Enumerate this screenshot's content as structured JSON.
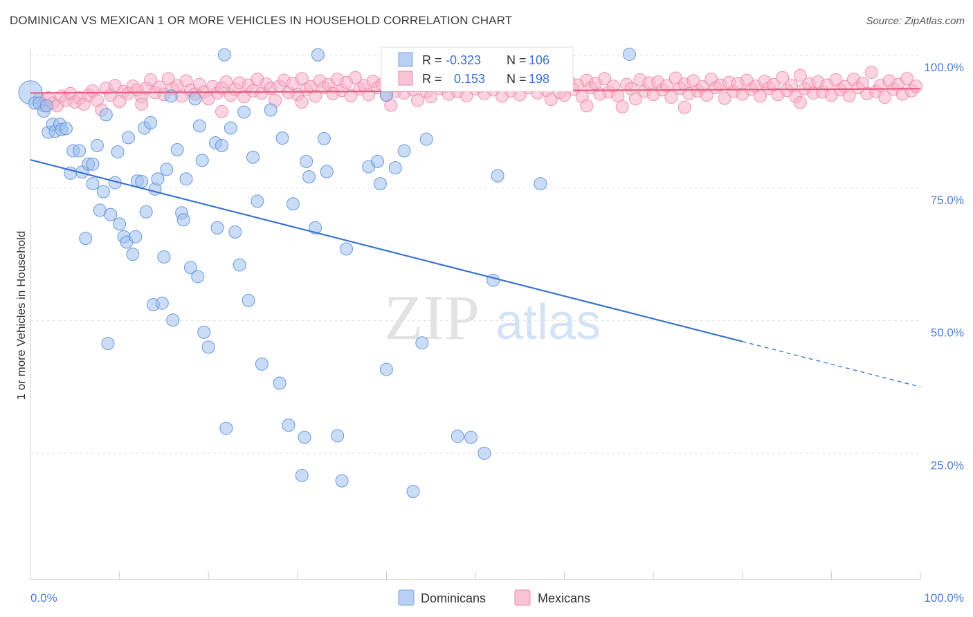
{
  "title": "DOMINICAN VS MEXICAN 1 OR MORE VEHICLES IN HOUSEHOLD CORRELATION CHART",
  "source": "Source: ZipAtlas.com",
  "watermark": {
    "zip": "ZIP",
    "atlas": "atlas"
  },
  "legend": {
    "rows": [
      {
        "r_label": "R =",
        "r_value": "-0.323",
        "n_label": "N =",
        "n_value": "106",
        "color": "#9fc0ee"
      },
      {
        "r_label": "R =",
        "r_value": "0.153",
        "n_label": "N =",
        "n_value": "198",
        "color": "#f6b3c8"
      }
    ]
  },
  "bottom_legend": [
    {
      "label": "Dominicans",
      "color": "#b7d0f4"
    },
    {
      "label": "Mexicans",
      "color": "#f8c3d4"
    }
  ],
  "chart_data": {
    "type": "scatter",
    "title": "DOMINICAN VS MEXICAN 1 OR MORE VEHICLES IN HOUSEHOLD CORRELATION CHART",
    "xlabel": "",
    "ylabel": "1 or more Vehicles in Household",
    "xlim": [
      0,
      100
    ],
    "ylim": [
      0,
      100
    ],
    "x_tick_labels": [
      "0.0%",
      "100.0%"
    ],
    "y_tick_labels": [
      "25.0%",
      "50.0%",
      "75.0%",
      "100.0%"
    ],
    "y_ticks": [
      25,
      50,
      75,
      100
    ],
    "grid": true,
    "legend_position": "top-center",
    "series": [
      {
        "name": "Dominicans",
        "color": "#9fc0ee",
        "stroke": "#5b8fd8",
        "trend": {
          "x0": 0,
          "y0": 80.3,
          "x1": 100,
          "y1": 37.5,
          "solid_until": 80
        },
        "points": [
          [
            0,
            93
          ],
          [
            0.5,
            91
          ],
          [
            1,
            91
          ],
          [
            1.5,
            89.5
          ],
          [
            1.8,
            90.5
          ],
          [
            2,
            85.5
          ],
          [
            2.5,
            87
          ],
          [
            2.8,
            85.7
          ],
          [
            3.3,
            87
          ],
          [
            3.5,
            86
          ],
          [
            4,
            86.2
          ],
          [
            4.5,
            77.8
          ],
          [
            4.8,
            82
          ],
          [
            5.5,
            82
          ],
          [
            5.8,
            78
          ],
          [
            6.2,
            65.5
          ],
          [
            6.5,
            79.5
          ],
          [
            7,
            79.5
          ],
          [
            7,
            75.8
          ],
          [
            7.5,
            83
          ],
          [
            7.8,
            70.8
          ],
          [
            8.2,
            74.3
          ],
          [
            8.5,
            88.8
          ],
          [
            8.7,
            45.7
          ],
          [
            9,
            70
          ],
          [
            9.5,
            76
          ],
          [
            9.8,
            81.8
          ],
          [
            10,
            68.2
          ],
          [
            10.5,
            65.8
          ],
          [
            10.8,
            64.8
          ],
          [
            11,
            84.5
          ],
          [
            11.5,
            62.5
          ],
          [
            11.8,
            65.8
          ],
          [
            12,
            76.3
          ],
          [
            12.5,
            76.2
          ],
          [
            12.8,
            86.3
          ],
          [
            13,
            70.5
          ],
          [
            13.5,
            87.3
          ],
          [
            13.8,
            53
          ],
          [
            14,
            74.8
          ],
          [
            14.3,
            76.7
          ],
          [
            14.8,
            53.3
          ],
          [
            15,
            62
          ],
          [
            15.3,
            78.5
          ],
          [
            15.8,
            92.3
          ],
          [
            16,
            50.1
          ],
          [
            16.5,
            82.2
          ],
          [
            17,
            70.3
          ],
          [
            17.2,
            69
          ],
          [
            17.5,
            76.7
          ],
          [
            18,
            60
          ],
          [
            18.5,
            91.8
          ],
          [
            18.8,
            58.3
          ],
          [
            19,
            86.7
          ],
          [
            19.3,
            80.2
          ],
          [
            19.5,
            47.8
          ],
          [
            20,
            45
          ],
          [
            20.8,
            83.5
          ],
          [
            21,
            67.5
          ],
          [
            21.5,
            83
          ],
          [
            21.8,
            100.1
          ],
          [
            22,
            29.7
          ],
          [
            22.5,
            86.3
          ],
          [
            23,
            66.7
          ],
          [
            23.5,
            60.5
          ],
          [
            24,
            89.3
          ],
          [
            24.5,
            53.8
          ],
          [
            25,
            80.8
          ],
          [
            25.5,
            72.5
          ],
          [
            26,
            41.8
          ],
          [
            27,
            89.7
          ],
          [
            28,
            38.2
          ],
          [
            28.3,
            84.4
          ],
          [
            29,
            30.3
          ],
          [
            29.5,
            72
          ],
          [
            30.5,
            20.8
          ],
          [
            30.8,
            28
          ],
          [
            31,
            80
          ],
          [
            31.3,
            77.1
          ],
          [
            32,
            67.5
          ],
          [
            32.3,
            100.1
          ],
          [
            33,
            84.3
          ],
          [
            33.3,
            78.1
          ],
          [
            34.5,
            28.3
          ],
          [
            35,
            19.8
          ],
          [
            35.5,
            63.5
          ],
          [
            38,
            79
          ],
          [
            39,
            80
          ],
          [
            39.3,
            75.8
          ],
          [
            40,
            40.8
          ],
          [
            40,
            92.5
          ],
          [
            41,
            78.8
          ],
          [
            42,
            82
          ],
          [
            43,
            17.8
          ],
          [
            44,
            45.8
          ],
          [
            44.5,
            84.2
          ],
          [
            48,
            28.2
          ],
          [
            49.5,
            28
          ],
          [
            51,
            25
          ],
          [
            52,
            57.6
          ],
          [
            52.5,
            77.3
          ],
          [
            57.3,
            75.8
          ],
          [
            67.3,
            100.2
          ]
        ]
      },
      {
        "name": "Mexicans",
        "color": "#f6b3c8",
        "stroke": "#ee86a8",
        "trend": {
          "x0": 0,
          "y0": 92.9,
          "x1": 100,
          "y1": 93.7,
          "solid_until": 100
        },
        "points": [
          [
            1,
            91.8
          ],
          [
            1.5,
            90.5
          ],
          [
            2,
            92
          ],
          [
            2.5,
            91
          ],
          [
            3,
            90.5
          ],
          [
            3.5,
            92.3
          ],
          [
            4,
            91.5
          ],
          [
            4.5,
            92.8
          ],
          [
            5,
            91.2
          ],
          [
            5.5,
            92
          ],
          [
            6,
            90.8
          ],
          [
            6.5,
            92.5
          ],
          [
            7,
            93.3
          ],
          [
            7.5,
            91.5
          ],
          [
            8,
            89.7
          ],
          [
            8.5,
            93.8
          ],
          [
            9,
            92.5
          ],
          [
            9.5,
            94.3
          ],
          [
            10,
            91.3
          ],
          [
            10.5,
            93.2
          ],
          [
            11,
            92.8
          ],
          [
            11.5,
            94.2
          ],
          [
            12,
            93.5
          ],
          [
            12.5,
            92.2
          ],
          [
            13,
            93.8
          ],
          [
            13.5,
            95.4
          ],
          [
            14,
            93
          ],
          [
            14.5,
            94
          ],
          [
            15,
            92.6
          ],
          [
            15.5,
            95.6
          ],
          [
            16,
            93.7
          ],
          [
            16.5,
            94.3
          ],
          [
            17,
            92.3
          ],
          [
            17.5,
            95.2
          ],
          [
            18,
            93.4
          ],
          [
            18.5,
            92.7
          ],
          [
            19,
            94.5
          ],
          [
            19.5,
            93.1
          ],
          [
            20,
            91.8
          ],
          [
            20.5,
            94.1
          ],
          [
            21,
            92.9
          ],
          [
            21.5,
            93.8
          ],
          [
            22,
            95
          ],
          [
            22.5,
            92.5
          ],
          [
            23,
            93.6
          ],
          [
            23.5,
            94.8
          ],
          [
            24,
            92.2
          ],
          [
            24.5,
            94.4
          ],
          [
            25,
            93.3
          ],
          [
            25.5,
            95.5
          ],
          [
            26,
            92.9
          ],
          [
            26.5,
            94.6
          ],
          [
            27,
            93.8
          ],
          [
            27.5,
            91.5
          ],
          [
            28,
            94.2
          ],
          [
            28.5,
            95.3
          ],
          [
            29,
            93
          ],
          [
            29.5,
            94.7
          ],
          [
            30,
            92.6
          ],
          [
            30.5,
            95.6
          ],
          [
            31,
            93.6
          ],
          [
            31.5,
            94.1
          ],
          [
            32,
            92.3
          ],
          [
            32.5,
            95.2
          ],
          [
            33,
            93.9
          ],
          [
            33.5,
            94.5
          ],
          [
            34,
            92.8
          ],
          [
            34.5,
            95.5
          ],
          [
            35,
            93.4
          ],
          [
            35.5,
            94.9
          ],
          [
            36,
            92.4
          ],
          [
            36.5,
            95.8
          ],
          [
            37,
            93.7
          ],
          [
            37.5,
            94.3
          ],
          [
            38,
            92.6
          ],
          [
            38.5,
            95.1
          ],
          [
            39,
            93.9
          ],
          [
            39.5,
            94.6
          ],
          [
            40,
            92.5
          ],
          [
            40.5,
            94.8
          ],
          [
            41,
            93.2
          ],
          [
            41.5,
            95.4
          ],
          [
            42,
            92.9
          ],
          [
            42.5,
            94.4
          ],
          [
            43,
            93.5
          ],
          [
            43.5,
            91.5
          ],
          [
            44,
            94.9
          ],
          [
            44.5,
            93.1
          ],
          [
            45,
            92.2
          ],
          [
            45.5,
            95.3
          ],
          [
            46,
            93.8
          ],
          [
            46.5,
            94.1
          ],
          [
            47,
            92.7
          ],
          [
            47.5,
            95.5
          ],
          [
            48,
            93.2
          ],
          [
            48.5,
            94.6
          ],
          [
            49,
            92.4
          ],
          [
            49.5,
            95
          ],
          [
            50,
            93.7
          ],
          [
            50.5,
            94.2
          ],
          [
            51,
            92.8
          ],
          [
            51.5,
            95.7
          ],
          [
            52,
            93.5
          ],
          [
            52.5,
            94.5
          ],
          [
            53,
            92.3
          ],
          [
            53.5,
            94.9
          ],
          [
            54,
            93.3
          ],
          [
            54.5,
            95.2
          ],
          [
            55,
            92.6
          ],
          [
            55.5,
            94.3
          ],
          [
            56,
            93.9
          ],
          [
            56.5,
            95.8
          ],
          [
            57,
            92.9
          ],
          [
            57.5,
            94.6
          ],
          [
            58,
            93.4
          ],
          [
            58.5,
            91.7
          ],
          [
            59,
            94.8
          ],
          [
            59.5,
            93
          ],
          [
            60,
            92.5
          ],
          [
            60.5,
            95.1
          ],
          [
            61,
            93.6
          ],
          [
            61.5,
            94.4
          ],
          [
            62,
            92.2
          ],
          [
            62.5,
            95.3
          ],
          [
            63,
            93.9
          ],
          [
            63.5,
            94.7
          ],
          [
            64,
            92.7
          ],
          [
            64.5,
            95.6
          ],
          [
            65,
            93.1
          ],
          [
            65.5,
            94.2
          ],
          [
            66,
            92.4
          ],
          [
            66.5,
            90.3
          ],
          [
            67,
            94.5
          ],
          [
            67.5,
            93.7
          ],
          [
            68,
            91.8
          ],
          [
            68.5,
            95.4
          ],
          [
            69,
            93.2
          ],
          [
            69.5,
            94.8
          ],
          [
            70,
            92.6
          ],
          [
            70.5,
            95
          ],
          [
            71,
            93.5
          ],
          [
            71.5,
            94.3
          ],
          [
            72,
            92.1
          ],
          [
            72.5,
            95.7
          ],
          [
            73,
            93.8
          ],
          [
            73.5,
            94.6
          ],
          [
            74,
            92.8
          ],
          [
            74.5,
            95.2
          ],
          [
            75,
            93.3
          ],
          [
            75.5,
            94.1
          ],
          [
            76,
            92.5
          ],
          [
            76.5,
            95.5
          ],
          [
            77,
            93.9
          ],
          [
            77.5,
            94.4
          ],
          [
            78,
            91.9
          ],
          [
            78.5,
            94.9
          ],
          [
            79,
            93.2
          ],
          [
            79.5,
            94.7
          ],
          [
            80,
            92.7
          ],
          [
            80.5,
            95.3
          ],
          [
            81,
            93.6
          ],
          [
            81.5,
            94.2
          ],
          [
            82,
            92.3
          ],
          [
            82.5,
            95.1
          ],
          [
            83,
            93.8
          ],
          [
            83.5,
            94.5
          ],
          [
            84,
            92.6
          ],
          [
            84.5,
            95.8
          ],
          [
            85,
            93.4
          ],
          [
            85.5,
            94.3
          ],
          [
            86,
            92.2
          ],
          [
            86.5,
            96.2
          ],
          [
            87,
            93.7
          ],
          [
            87.5,
            94.6
          ],
          [
            88,
            92.9
          ],
          [
            88.5,
            95
          ],
          [
            89,
            93.1
          ],
          [
            89.5,
            94.4
          ],
          [
            90,
            92.5
          ],
          [
            90.5,
            95.4
          ],
          [
            91,
            93.5
          ],
          [
            91.5,
            94.1
          ],
          [
            92,
            92.4
          ],
          [
            92.5,
            95.5
          ],
          [
            93,
            93.9
          ],
          [
            93.5,
            94.7
          ],
          [
            94,
            92.8
          ],
          [
            94.5,
            96.8
          ],
          [
            95,
            93.2
          ],
          [
            95.5,
            94.3
          ],
          [
            96,
            92.1
          ],
          [
            96.5,
            95.2
          ],
          [
            97,
            93.6
          ],
          [
            97.5,
            94.5
          ],
          [
            98,
            92.7
          ],
          [
            98.5,
            95.6
          ],
          [
            99,
            93.3
          ],
          [
            99.5,
            94.2
          ],
          [
            12.5,
            90.8
          ],
          [
            21.5,
            89.4
          ],
          [
            30.5,
            91.2
          ],
          [
            40.5,
            90.6
          ],
          [
            62.5,
            90.5
          ],
          [
            73.5,
            90.2
          ],
          [
            86.5,
            91.1
          ]
        ]
      }
    ]
  }
}
